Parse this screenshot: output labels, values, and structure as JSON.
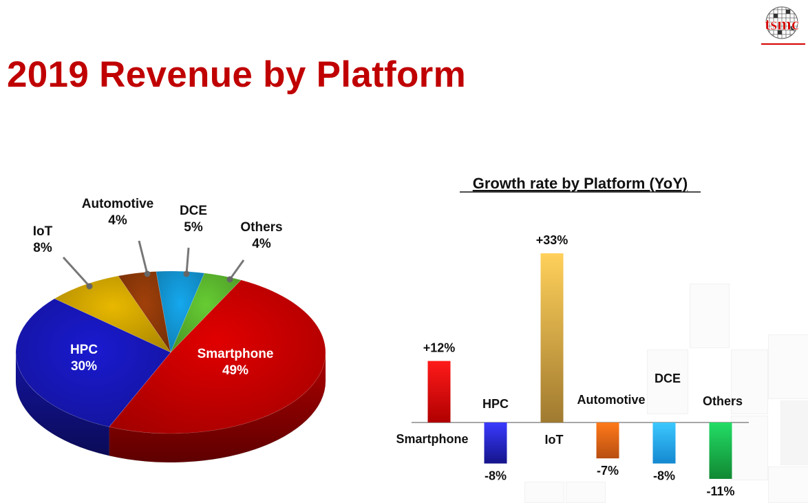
{
  "page": {
    "title": "2019 Revenue by Platform",
    "logo_text": "tsmc"
  },
  "colors": {
    "title": "#c00000",
    "smartphone": "#e00000",
    "hpc": "#1a1ad0",
    "iot": "#e8b800",
    "automotive": "#a0400a",
    "dce": "#15a8ee",
    "others": "#66cc33"
  },
  "chart_data": [
    {
      "type": "pie",
      "title": "",
      "slices": [
        {
          "label": "Smartphone",
          "value": 49,
          "value_label": "49%"
        },
        {
          "label": "HPC",
          "value": 30,
          "value_label": "30%"
        },
        {
          "label": "IoT",
          "value": 8,
          "value_label": "8%"
        },
        {
          "label": "Automotive",
          "value": 4,
          "value_label": "4%"
        },
        {
          "label": "DCE",
          "value": 5,
          "value_label": "5%"
        },
        {
          "label": "Others",
          "value": 4,
          "value_label": "4%"
        }
      ]
    },
    {
      "type": "bar",
      "title": "Growth rate by Platform (YoY)",
      "categories": [
        "Smartphone",
        "HPC",
        "IoT",
        "Automotive",
        "DCE",
        "Others"
      ],
      "values": [
        12,
        -8,
        33,
        -7,
        -8,
        -11
      ],
      "value_labels": [
        "+12%",
        "-8%",
        "+33%",
        "-7%",
        "-8%",
        "-11%"
      ],
      "xlabel": "",
      "ylabel": ""
    }
  ]
}
